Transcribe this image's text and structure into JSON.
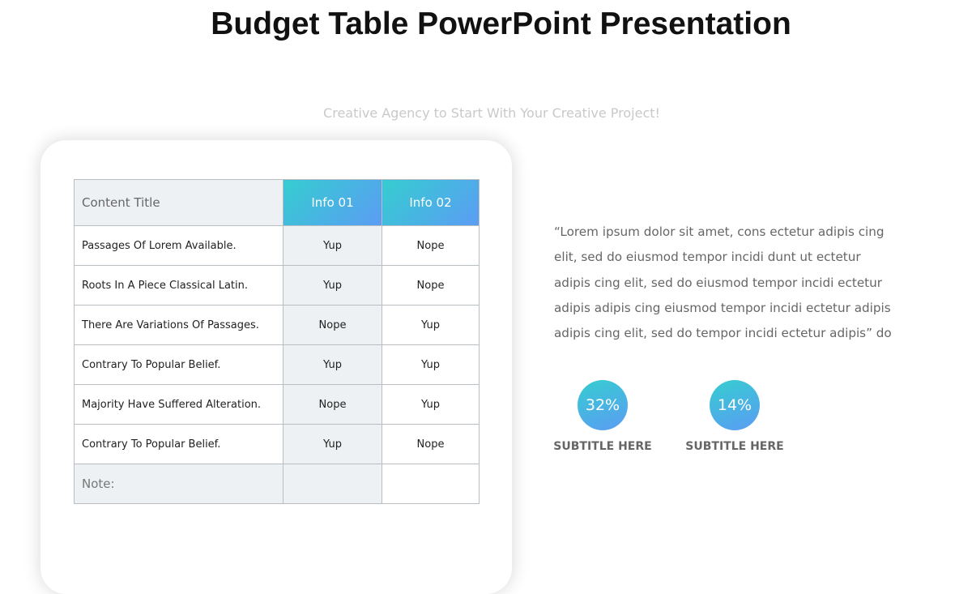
{
  "header": {
    "title": "Budget Table PowerPoint Presentation",
    "subtitle": "Creative Agency to Start With Your Creative Project!"
  },
  "table": {
    "columns": [
      "Content Title",
      "Info 01",
      "Info 02"
    ],
    "rows": [
      [
        "Passages Of Lorem Available.",
        "Yup",
        "Nope"
      ],
      [
        "Roots In A Piece Classical Latin.",
        "Yup",
        "Nope"
      ],
      [
        "There Are Variations Of Passages.",
        "Nope",
        "Yup"
      ],
      [
        "Contrary To Popular Belief.",
        "Yup",
        "Yup"
      ],
      [
        "Majority Have Suffered Alteration.",
        "Nope",
        "Yup"
      ],
      [
        "Contrary To Popular Belief.",
        "Yup",
        "Nope"
      ]
    ],
    "note": "Note:"
  },
  "quote": "“Lorem ipsum dolor sit amet, cons ectetur adipis cing elit, sed do eiusmod tempor incidi dunt ut ectetur adipis cing elit, sed do eiusmod tempor incidi ectetur adipis adipis cing eiusmod tempor incidi ectetur adipis adipis cing elit, sed do tempor incidi ectetur adipis” do",
  "stats": [
    {
      "value": "32%",
      "label": "SUBTITLE HERE"
    },
    {
      "value": "14%",
      "label": "SUBTITLE HERE"
    }
  ]
}
